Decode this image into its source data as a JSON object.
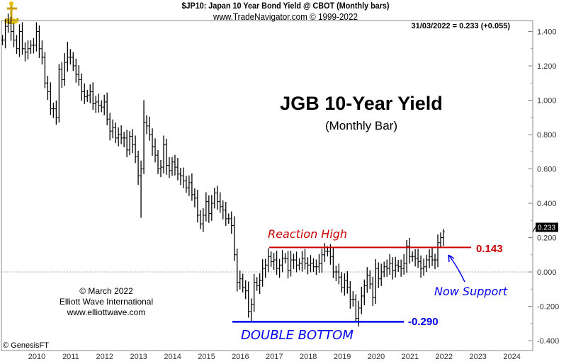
{
  "header": {
    "title": "$JP10:  Japan 10 Year Bond Yield @ CBOT  (Monthly bars)",
    "source": "www.TradeNavigator.com © 1999-2022",
    "last_value": "31/03/2022 = 0.233 (+0.055)"
  },
  "credit": {
    "line1": "© March 2022",
    "line2": "Elliott Wave International",
    "line3": "www.elliottwave.com"
  },
  "genesis": "© GenesisFT",
  "chart_data": {
    "type": "ohlc",
    "title": "JGB 10-Year Yield",
    "subtitle": "(Monthly Bar)",
    "start_month": "2009-03",
    "closes": [
      1.35,
      1.43,
      1.45,
      1.4,
      1.35,
      1.3,
      1.4,
      1.3,
      1.28,
      1.3,
      1.32,
      1.32,
      1.4,
      1.3,
      1.25,
      1.1,
      1.05,
      0.95,
      0.95,
      0.9,
      1.18,
      1.12,
      1.22,
      1.25,
      1.25,
      1.2,
      1.15,
      1.12,
      1.05,
      1.02,
      1.03,
      1.05,
      0.98,
      0.99,
      0.97,
      0.96,
      0.99,
      0.89,
      0.82,
      0.84,
      0.78,
      0.8,
      0.78,
      0.78,
      0.71,
      0.79,
      0.74,
      0.67,
      0.56,
      0.6,
      0.87,
      0.85,
      0.8,
      0.73,
      0.68,
      0.6,
      0.61,
      0.74,
      0.62,
      0.59,
      0.64,
      0.61,
      0.57,
      0.56,
      0.53,
      0.49,
      0.52,
      0.45,
      0.43,
      0.33,
      0.28,
      0.33,
      0.41,
      0.34,
      0.4,
      0.46,
      0.41,
      0.38,
      0.36,
      0.31,
      0.31,
      0.27,
      0.1,
      -0.06,
      -0.04,
      -0.09,
      -0.11,
      -0.23,
      -0.19,
      -0.06,
      -0.08,
      -0.05,
      0.02,
      0.04,
      0.09,
      0.06,
      0.07,
      0.02,
      0.04,
      0.08,
      0.08,
      0.01,
      0.07,
      0.07,
      0.04,
      0.05,
      0.08,
      0.05,
      0.04,
      0.05,
      0.03,
      0.03,
      0.05,
      0.1,
      0.12,
      0.12,
      0.09,
      0.0,
      0.0,
      -0.03,
      -0.09,
      -0.05,
      -0.09,
      -0.16,
      -0.16,
      -0.27,
      -0.21,
      -0.14,
      -0.08,
      -0.02,
      -0.07,
      -0.15,
      0.02,
      -0.04,
      0.0,
      0.03,
      0.02,
      0.05,
      0.01,
      0.04,
      0.03,
      0.02,
      0.05,
      0.15,
      0.09,
      0.09,
      0.08,
      0.06,
      0.02,
      0.03,
      0.07,
      0.09,
      0.07,
      0.07,
      0.17,
      0.2,
      0.233
    ],
    "low_overrides": {
      "49": 0.315,
      "88": -0.29,
      "125": -0.29
    },
    "high_overrides": {
      "156": 0.25,
      "50": 1.0,
      "23": 1.34
    },
    "x_ticks": [
      "2010",
      "2011",
      "2012",
      "2013",
      "2014",
      "2015",
      "2016",
      "2017",
      "2018",
      "2019",
      "2020",
      "2021",
      "2022",
      "2023",
      "2024"
    ],
    "y_ticks": [
      "1.400",
      "1.200",
      "1.000",
      "0.800",
      "0.600",
      "0.400",
      "0.200",
      "0.000",
      "-0.200",
      "-0.400"
    ],
    "y_tick_values": [
      1.4,
      1.2,
      1.0,
      0.8,
      0.6,
      0.4,
      0.2,
      0.0,
      -0.2,
      -0.4
    ],
    "ylim": [
      -0.45,
      1.55
    ],
    "last_label": "0.233",
    "annotations": {
      "reaction_high": {
        "label": "Reaction High",
        "level": 0.143,
        "value_label": "0.143",
        "color": "#cc0000"
      },
      "double_bottom": {
        "label": "DOUBLE BOTTOM",
        "level": -0.29,
        "value_label": "-0.290",
        "color": "#0000ee"
      },
      "now_support": {
        "label": "Now Support",
        "color": "#0000ee"
      }
    }
  }
}
